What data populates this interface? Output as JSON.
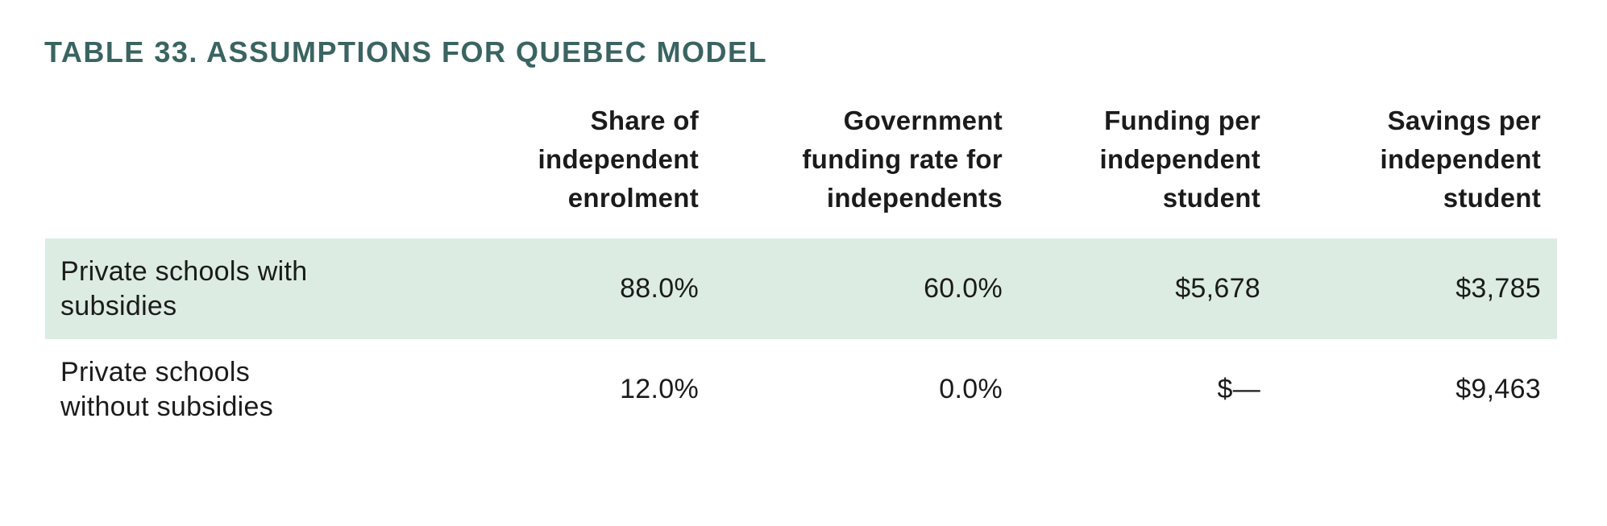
{
  "title": "TABLE 33. ASSUMPTIONS FOR QUEBEC MODEL",
  "colors": {
    "title_text": "#3a6462",
    "highlight_row_bg": "#dcece2",
    "body_text": "#1b1b1b"
  },
  "table": {
    "header": {
      "columns": [
        {
          "label": [
            "Share of",
            "independent",
            "enrolment"
          ]
        },
        {
          "label": [
            "Government",
            "funding rate for",
            "independents"
          ]
        },
        {
          "label": [
            "Funding per",
            "independent",
            "student"
          ]
        },
        {
          "label": [
            "Savings per",
            "independent",
            "student"
          ]
        }
      ]
    },
    "rows": [
      {
        "label": [
          "Private schools with",
          "subsidies"
        ],
        "highlighted": true,
        "values": [
          "88.0%",
          "60.0%",
          "$5,678",
          "$3,785"
        ]
      },
      {
        "label": [
          "Private schools",
          "without subsidies"
        ],
        "highlighted": false,
        "values": [
          "12.0%",
          "0.0%",
          "$—",
          "$9,463"
        ]
      }
    ]
  }
}
